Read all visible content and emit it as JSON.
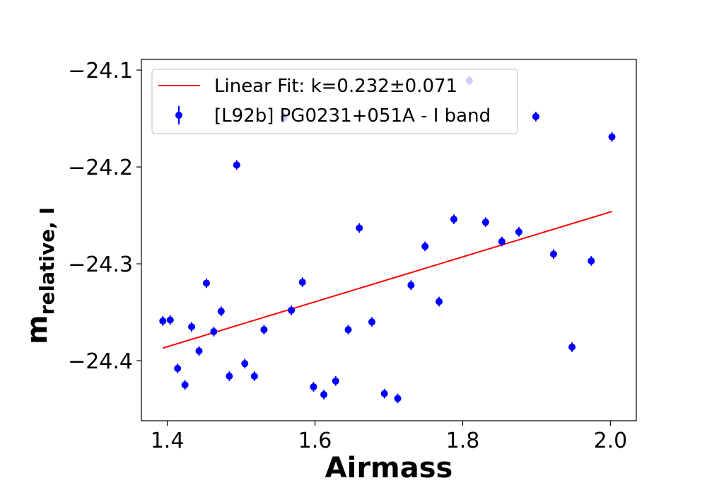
{
  "chart_data": {
    "type": "scatter",
    "xlabel": "Airmass",
    "ylabel_main": "m",
    "ylabel_sub": "relative, I",
    "xlim": [
      1.365,
      2.035
    ],
    "ylim": [
      -24.462,
      -24.089
    ],
    "y_inverted": true,
    "x_ticks": [
      1.4,
      1.6,
      1.8,
      2.0
    ],
    "x_tick_labels": [
      "1.4",
      "1.6",
      "1.8",
      "2.0"
    ],
    "y_ticks": [
      -24.1,
      -24.2,
      -24.3,
      -24.4
    ],
    "y_tick_labels": [
      "−24.1",
      "−24.2",
      "−24.3",
      "−24.4"
    ],
    "grid": false,
    "legend_position": "top-left",
    "series": [
      {
        "name": "[L92b] PG0231+051A - I band",
        "kind": "errorbar-points",
        "color": "#0000ff",
        "x": [
          1.394,
          1.404,
          1.414,
          1.424,
          1.433,
          1.443,
          1.453,
          1.463,
          1.473,
          1.484,
          1.494,
          1.505,
          1.518,
          1.531,
          1.558,
          1.568,
          1.583,
          1.598,
          1.612,
          1.628,
          1.645,
          1.66,
          1.677,
          1.694,
          1.712,
          1.73,
          1.749,
          1.768,
          1.788,
          1.809,
          1.831,
          1.853,
          1.876,
          1.899,
          1.923,
          1.948,
          1.974,
          2.002
        ],
        "y": [
          -24.359,
          -24.358,
          -24.408,
          -24.425,
          -24.365,
          -24.39,
          -24.32,
          -24.37,
          -24.349,
          -24.416,
          -24.198,
          -24.403,
          -24.416,
          -24.368,
          -24.149,
          -24.348,
          -24.319,
          -24.427,
          -24.435,
          -24.421,
          -24.368,
          -24.263,
          -24.36,
          -24.434,
          -24.439,
          -24.322,
          -24.282,
          -24.339,
          -24.254,
          -24.111,
          -24.257,
          -24.277,
          -24.267,
          -24.148,
          -24.29,
          -24.386,
          -24.297,
          -24.169
        ],
        "yerr": [
          0.005,
          0.005,
          0.005,
          0.005,
          0.005,
          0.005,
          0.005,
          0.005,
          0.005,
          0.005,
          0.005,
          0.005,
          0.005,
          0.005,
          0.005,
          0.005,
          0.005,
          0.005,
          0.005,
          0.005,
          0.005,
          0.005,
          0.005,
          0.005,
          0.005,
          0.005,
          0.005,
          0.005,
          0.005,
          0.005,
          0.005,
          0.005,
          0.005,
          0.005,
          0.005,
          0.005,
          0.005,
          0.005
        ]
      },
      {
        "name": "Linear Fit: k=0.232±0.071",
        "kind": "line",
        "color": "#ff0000",
        "x": [
          1.394,
          2.002
        ],
        "y": [
          -24.387,
          -24.246
        ]
      }
    ]
  }
}
